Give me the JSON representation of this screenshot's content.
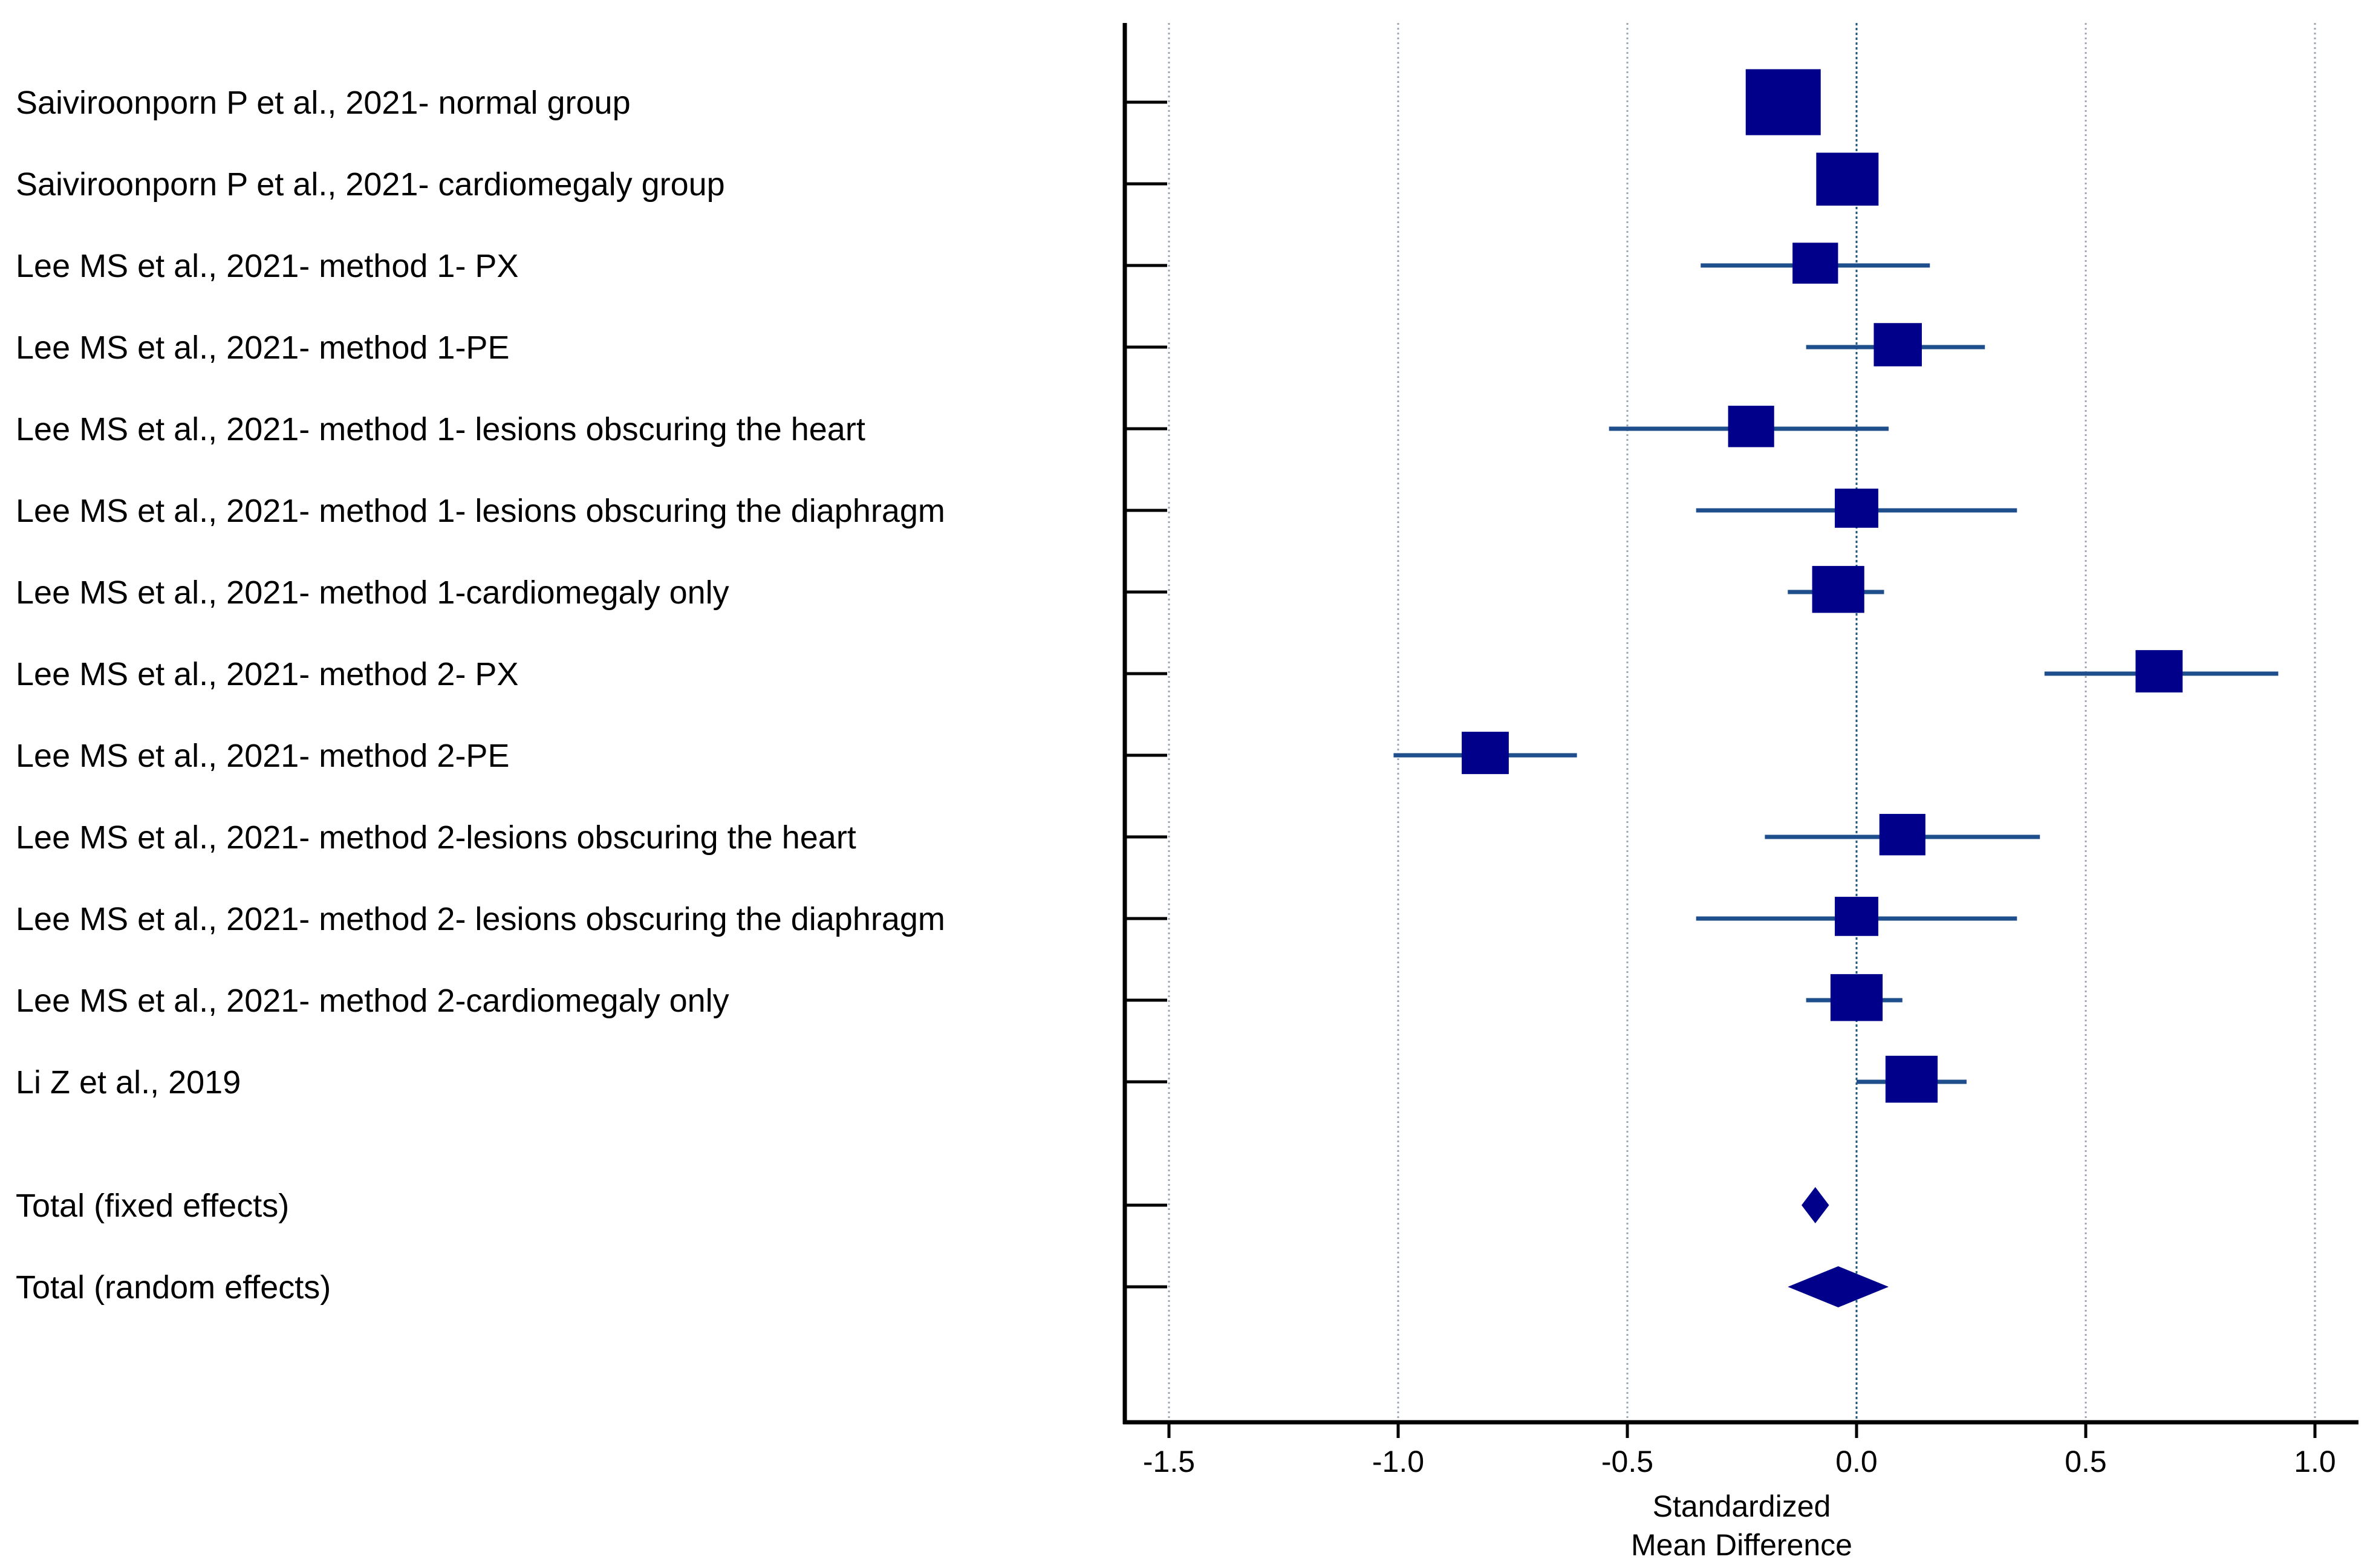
{
  "chart_data": {
    "type": "forest",
    "xlabel_lines": [
      "Standardized",
      "Mean Difference"
    ],
    "xlim": [
      -1.6,
      1.1
    ],
    "xticks": [
      -1.5,
      -1.0,
      -0.5,
      0.0,
      0.5,
      1.0
    ],
    "xtick_labels": [
      "-1.5",
      "-1.0",
      "-0.5",
      "0.0",
      "0.5",
      "1.0"
    ],
    "grid": "vertical dotted at ticks",
    "reference_line": 0,
    "colors": {
      "marker": "#00008b",
      "ci_line": "#1f4e8c",
      "axis": "#000000",
      "grid": "#9aa6b2"
    },
    "studies": [
      {
        "label": "Saiviroonporn P et al., 2021- normal group",
        "smd": -0.16,
        "ci_low": -0.21,
        "ci_high": -0.11,
        "weight": 1.0
      },
      {
        "label": "Saiviroonporn P et al., 2021- cardiomegaly group",
        "smd": -0.02,
        "ci_low": -0.07,
        "ci_high": 0.03,
        "weight": 0.75
      },
      {
        "label": "Lee MS et al., 2021- method 1- PX",
        "smd": -0.09,
        "ci_low": -0.34,
        "ci_high": 0.16,
        "weight": 0.42
      },
      {
        "label": "Lee MS et al., 2021- method 1-PE",
        "smd": 0.09,
        "ci_low": -0.11,
        "ci_high": 0.28,
        "weight": 0.47
      },
      {
        "label": "Lee MS et al., 2021- method 1- lesions obscuring the heart",
        "smd": -0.23,
        "ci_low": -0.54,
        "ci_high": 0.07,
        "weight": 0.43
      },
      {
        "label": "Lee MS et al., 2021- method 1- lesions obscuring the diaphragm",
        "smd": 0.0,
        "ci_low": -0.35,
        "ci_high": 0.35,
        "weight": 0.38
      },
      {
        "label": "Lee MS et al., 2021- method 1-cardiomegaly only",
        "smd": -0.04,
        "ci_low": -0.15,
        "ci_high": 0.06,
        "weight": 0.55
      },
      {
        "label": "Lee MS et al., 2021- method 2- PX",
        "smd": 0.66,
        "ci_low": 0.41,
        "ci_high": 0.92,
        "weight": 0.45
      },
      {
        "label": "Lee MS et al., 2021- method 2-PE",
        "smd": -0.81,
        "ci_low": -1.01,
        "ci_high": -0.61,
        "weight": 0.45
      },
      {
        "label": "Lee MS et al., 2021- method 2-lesions obscuring the heart",
        "smd": 0.1,
        "ci_low": -0.2,
        "ci_high": 0.4,
        "weight": 0.43
      },
      {
        "label": "Lee MS et al., 2021- method 2- lesions obscuring the diaphragm",
        "smd": 0.0,
        "ci_low": -0.35,
        "ci_high": 0.35,
        "weight": 0.38
      },
      {
        "label": "Lee MS et al., 2021- method 2-cardiomegaly only",
        "smd": 0.0,
        "ci_low": -0.11,
        "ci_high": 0.1,
        "weight": 0.55
      },
      {
        "label": "Li Z et al., 2019",
        "smd": 0.12,
        "ci_low": 0.0,
        "ci_high": 0.24,
        "weight": 0.55
      }
    ],
    "totals": [
      {
        "label": "Total (fixed effects)",
        "smd": -0.09,
        "ci_low": -0.12,
        "ci_high": -0.06
      },
      {
        "label": "Total (random effects)",
        "smd": -0.04,
        "ci_low": -0.15,
        "ci_high": 0.07
      }
    ]
  }
}
